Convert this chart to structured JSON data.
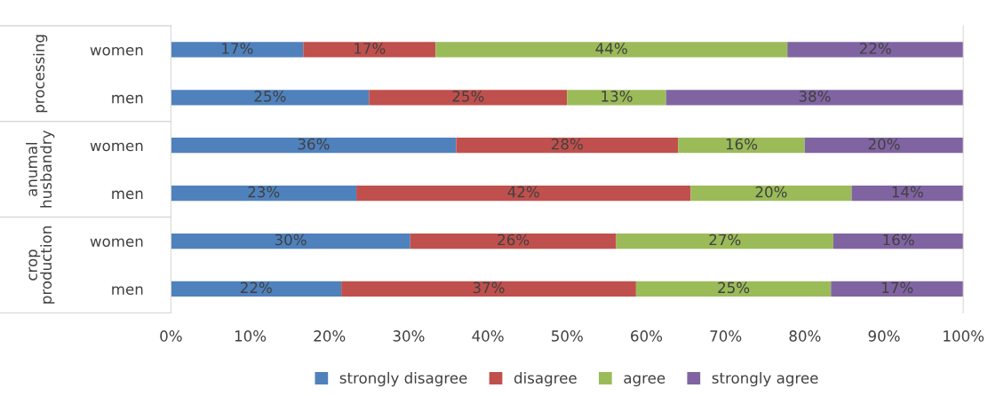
{
  "chart_data": {
    "type": "bar",
    "orientation": "horizontal",
    "stacked": true,
    "categories": [
      "women",
      "men",
      "women",
      "men",
      "women",
      "men"
    ],
    "annotations": [
      "processing",
      "anumal husbandry",
      "crop production"
    ],
    "series": [
      {
        "name": "strongly disagree",
        "color": "#4f81bd",
        "values": [
          16.7,
          25,
          36,
          23.4,
          30.2,
          21.5
        ],
        "value_labels": [
          "17%",
          "25%",
          "36%",
          "23%",
          "30%",
          "22%"
        ]
      },
      {
        "name": "disagree",
        "color": "#c0504d",
        "values": [
          16.7,
          25,
          28,
          42.2,
          26.0,
          37.2
        ],
        "value_labels": [
          "17%",
          "25%",
          "28%",
          "42%",
          "26%",
          "37%"
        ]
      },
      {
        "name": "agree",
        "color": "#9bbb59",
        "values": [
          44.4,
          12.5,
          16,
          20.3,
          27.4,
          24.6
        ],
        "value_labels": [
          "44%",
          "13%",
          "16%",
          "20%",
          "27%",
          "25%"
        ]
      },
      {
        "name": "strongly agree",
        "color": "#8064a2",
        "values": [
          22.2,
          37.5,
          20,
          14.1,
          16.4,
          16.7
        ],
        "value_labels": [
          "22%",
          "38%",
          "20%",
          "14%",
          "16%",
          "17%"
        ]
      }
    ],
    "xlim": [
      0,
      100
    ],
    "xticks": [
      {
        "value": 0,
        "label": "0%"
      },
      {
        "value": 10,
        "label": "10%"
      },
      {
        "value": 20,
        "label": "20%"
      },
      {
        "value": 30,
        "label": "30%"
      },
      {
        "value": 40,
        "label": "40%"
      },
      {
        "value": 50,
        "label": "50%"
      },
      {
        "value": 60,
        "label": "60%"
      },
      {
        "value": 70,
        "label": "70%"
      },
      {
        "value": 80,
        "label": "80%"
      },
      {
        "value": 90,
        "label": "90%"
      },
      {
        "value": 100,
        "label": "100%"
      }
    ],
    "legend": "bottom",
    "grid": false
  }
}
